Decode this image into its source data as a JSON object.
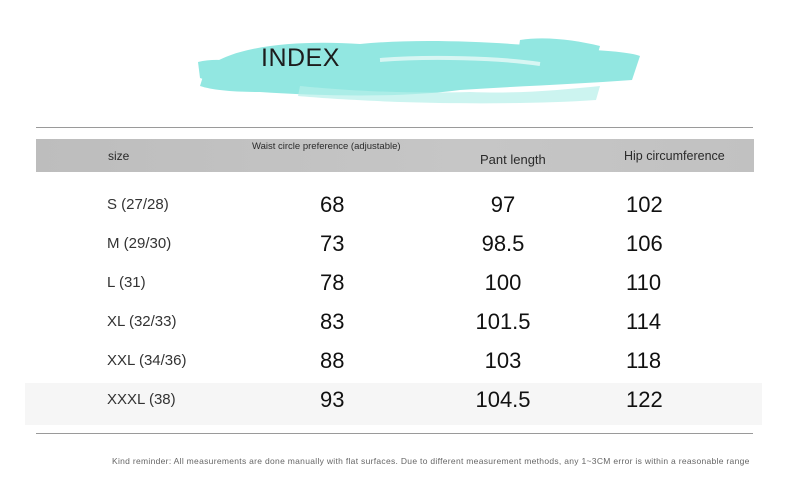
{
  "title": "INDEX",
  "colors": {
    "brush": "#7fe3dc",
    "header_bar": "#c1c1c1",
    "rule": "#9a9a9a",
    "shaded_row": "#f6f6f6"
  },
  "table": {
    "headers": {
      "size": "size",
      "waist": "Waist circle preference (adjustable)",
      "pant_length": "Pant length",
      "hip": "Hip circumference"
    },
    "rows": [
      {
        "size": "S (27/28)",
        "waist": "68",
        "pant_length": "97",
        "hip": "102"
      },
      {
        "size": "M (29/30)",
        "waist": "73",
        "pant_length": "98.5",
        "hip": "106"
      },
      {
        "size": "L (31)",
        "waist": "78",
        "pant_length": "100",
        "hip": "110"
      },
      {
        "size": "XL (32/33)",
        "waist": "83",
        "pant_length": "101.5",
        "hip": "114"
      },
      {
        "size": "XXL (34/36)",
        "waist": "88",
        "pant_length": "103",
        "hip": "118"
      },
      {
        "size": "XXXL (38)",
        "waist": "93",
        "pant_length": "104.5",
        "hip": "122"
      }
    ]
  },
  "note": "Kind reminder: All measurements are done manually with flat surfaces. Due to different measurement methods, any 1~3CM error is within a reasonable range"
}
